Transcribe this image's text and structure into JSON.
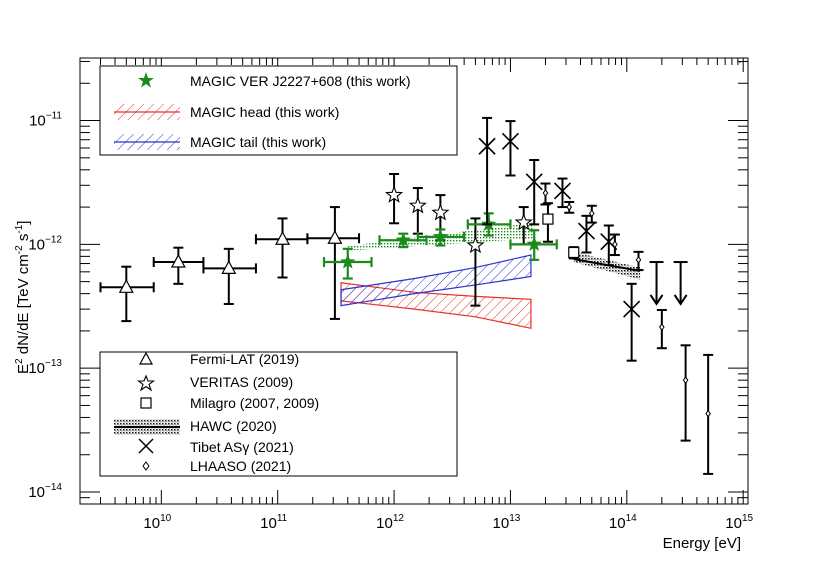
{
  "chart_data": {
    "type": "scatter",
    "title": "",
    "xlabel": "Energy [eV]",
    "ylabel_parts": {
      "e": "E",
      "e_sup": "2",
      "mid": " dN/dE [TeV cm",
      "cm_sup": "-2",
      "s": " s",
      "s_sup": "-1",
      "end": "]"
    },
    "x_scale": "log",
    "y_scale": "log",
    "xlim": [
      2000000000.0,
      1100000000000000.0
    ],
    "ylim": [
      8e-15,
      3.2e-11
    ],
    "x_ticks": [
      {
        "value": 10000000000.0,
        "base": "10",
        "exp": "10"
      },
      {
        "value": 100000000000.0,
        "base": "10",
        "exp": "11"
      },
      {
        "value": 1000000000000.0,
        "base": "10",
        "exp": "12"
      },
      {
        "value": 10000000000000.0,
        "base": "10",
        "exp": "13"
      },
      {
        "value": 100000000000000.0,
        "base": "10",
        "exp": "14"
      },
      {
        "value": 1000000000000000.0,
        "base": "10",
        "exp": "15"
      }
    ],
    "y_ticks": [
      {
        "value": 1e-14,
        "base": "10",
        "exp": "−14"
      },
      {
        "value": 1e-13,
        "base": "10",
        "exp": "−13"
      },
      {
        "value": 1e-12,
        "base": "10",
        "exp": "−12"
      },
      {
        "value": 1e-11,
        "base": "10",
        "exp": "−11"
      }
    ],
    "legend_top": {
      "position": "top-left",
      "entries": [
        {
          "label": "MAGIC VER J2227+608 (this work)",
          "marker": "star-filled",
          "color": "#1a8a1a"
        },
        {
          "label": "MAGIC head (this work)",
          "marker": "hatched-band",
          "color": "#e8302a"
        },
        {
          "label": "MAGIC tail (this work)",
          "marker": "hatched-band",
          "color": "#2b33cc"
        }
      ]
    },
    "legend_bottom": {
      "position": "bottom-left",
      "entries": [
        {
          "label": "Fermi-LAT (2019)",
          "marker": "triangle-open"
        },
        {
          "label": "VERITAS (2009)",
          "marker": "star-open"
        },
        {
          "label": "Milagro (2007, 2009)",
          "marker": "square-open"
        },
        {
          "label": "HAWC (2020)",
          "marker": "dotted-band"
        },
        {
          "label": "Tibet ASγ (2021)",
          "marker": "cross"
        },
        {
          "label": "LHAASO (2021)",
          "marker": "diamond-small"
        }
      ]
    },
    "series": [
      {
        "name": "Fermi-LAT (2019)",
        "marker": "triangle-open",
        "color": "#000000",
        "points": [
          {
            "x": 5000000000.0,
            "y": 4.5e-13,
            "xlo": 3000000000.0,
            "xhi": 8600000000.0,
            "ylo": 2.4e-13,
            "yhi": 6.6e-13
          },
          {
            "x": 14000000000.0,
            "y": 7.2e-13,
            "xlo": 8600000000.0,
            "xhi": 23000000000.0,
            "ylo": 4.8e-13,
            "yhi": 9.4e-13
          },
          {
            "x": 38000000000.0,
            "y": 6.4e-13,
            "xlo": 23000000000.0,
            "xhi": 65000000000.0,
            "ylo": 3.3e-13,
            "yhi": 9.2e-13
          },
          {
            "x": 110000000000.0,
            "y": 1.1e-12,
            "xlo": 65000000000.0,
            "xhi": 180000000000.0,
            "ylo": 5.4e-13,
            "yhi": 1.62e-12
          },
          {
            "x": 310000000000.0,
            "y": 1.12e-12,
            "xlo": 180000000000.0,
            "xhi": 500000000000.0,
            "ylo": 2.5e-13,
            "yhi": 2e-12
          }
        ]
      },
      {
        "name": "VERITAS (2009)",
        "marker": "star-open",
        "color": "#000000",
        "points": [
          {
            "x": 1000000000000.0,
            "y": 2.5e-12,
            "ylo": 1.48e-12,
            "yhi": 3.7e-12
          },
          {
            "x": 1600000000000.0,
            "y": 2.05e-12,
            "ylo": 1.22e-12,
            "yhi": 2.85e-12
          },
          {
            "x": 2500000000000.0,
            "y": 1.8e-12,
            "ylo": 1.08e-12,
            "yhi": 2.5e-12
          },
          {
            "x": 5000000000000.0,
            "y": 9.8e-13,
            "ylo": 3.2e-13,
            "yhi": 1.62e-12
          },
          {
            "x": 13000000000000.0,
            "y": 1.5e-12,
            "ylo": 1e-12,
            "yhi": 2e-12
          }
        ]
      },
      {
        "name": "MAGIC VER J2227+608 (this work)",
        "marker": "star-filled",
        "color": "#1a8a1a",
        "points": [
          {
            "x": 400000000000.0,
            "y": 7.2e-13,
            "xlo": 250000000000.0,
            "xhi": 640000000000.0,
            "ylo": 5.3e-13,
            "yhi": 9.2e-13
          },
          {
            "x": 1200000000000.0,
            "y": 1.08e-12,
            "xlo": 750000000000.0,
            "xhi": 1900000000000.0,
            "ylo": 9.5e-13,
            "yhi": 1.22e-12
          },
          {
            "x": 2500000000000.0,
            "y": 1.15e-12,
            "xlo": 1600000000000.0,
            "xhi": 4000000000000.0,
            "ylo": 9.8e-13,
            "yhi": 1.32e-12
          },
          {
            "x": 6500000000000.0,
            "y": 1.45e-12,
            "xlo": 4300000000000.0,
            "xhi": 10000000000000.0,
            "ylo": 1.18e-12,
            "yhi": 1.78e-12
          },
          {
            "x": 16000000000000.0,
            "y": 1e-12,
            "xlo": 10000000000000.0,
            "xhi": 25000000000000.0,
            "ylo": 7.5e-13,
            "yhi": 1.3e-12
          }
        ]
      },
      {
        "name": "Milagro (2007, 2009)",
        "marker": "square-open",
        "color": "#000000",
        "points": [
          {
            "x": 21000000000000.0,
            "y": 1.6e-12,
            "ylo": 1.05e-12,
            "yhi": 2.15e-12
          },
          {
            "x": 35000000000000.0,
            "y": 8.6e-13,
            "ylo": 7.7e-13,
            "yhi": 9.5e-13
          }
        ]
      },
      {
        "name": "Tibet ASγ (2021)",
        "marker": "cross",
        "color": "#000000",
        "points": [
          {
            "x": 6300000000000.0,
            "y": 6.2e-12,
            "ylo": 1.45e-12,
            "yhi": 1.05e-11
          },
          {
            "x": 10000000000000.0,
            "y": 6.8e-12,
            "ylo": 3.6e-12,
            "yhi": 9.9e-12
          },
          {
            "x": 16000000000000.0,
            "y": 3.2e-12,
            "ylo": 1.45e-12,
            "yhi": 4.8e-12
          },
          {
            "x": 28000000000000.0,
            "y": 2.7e-12,
            "ylo": 2e-12,
            "yhi": 3.4e-12
          },
          {
            "x": 45000000000000.0,
            "y": 1.28e-12,
            "ylo": 8.6e-13,
            "yhi": 1.7e-12
          },
          {
            "x": 70000000000000.0,
            "y": 1.05e-12,
            "ylo": 6.8e-13,
            "yhi": 1.42e-12
          },
          {
            "x": 110000000000000.0,
            "y": 3e-13,
            "ylo": 1.15e-13,
            "yhi": 4.8e-13
          }
        ]
      },
      {
        "name": "Tibet ASγ (2021) upper limits",
        "marker": "upper-limit",
        "color": "#000000",
        "points": [
          {
            "x": 180000000000000.0,
            "y": 7.2e-13,
            "ylimit_tip": 3.3e-13
          },
          {
            "x": 290000000000000.0,
            "y": 7.2e-13,
            "ylimit_tip": 3.3e-13
          }
        ]
      },
      {
        "name": "LHAASO (2021)",
        "marker": "diamond-small",
        "color": "#000000",
        "points": [
          {
            "x": 20000000000000.0,
            "y": 2.6e-12,
            "ylo": 2.1e-12,
            "yhi": 3.1e-12
          },
          {
            "x": 32000000000000.0,
            "y": 2e-12,
            "ylo": 1.8e-12,
            "yhi": 2.2e-12
          },
          {
            "x": 50000000000000.0,
            "y": 1.78e-12,
            "ylo": 1.5e-12,
            "yhi": 2.05e-12
          },
          {
            "x": 79000000000000.0,
            "y": 1e-12,
            "ylo": 8.2e-13,
            "yhi": 1.2e-12
          },
          {
            "x": 126000000000000.0,
            "y": 7.5e-13,
            "ylo": 6.2e-13,
            "yhi": 8.7e-13
          },
          {
            "x": 200000000000000.0,
            "y": 2.15e-13,
            "ylo": 1.45e-13,
            "yhi": 2.95e-13
          },
          {
            "x": 320000000000000.0,
            "y": 8e-14,
            "ylo": 2.6e-14,
            "yhi": 1.53e-13
          },
          {
            "x": 500000000000000.0,
            "y": 4.3e-14,
            "ylo": 1.4e-14,
            "yhi": 1.28e-13
          }
        ]
      }
    ],
    "bands": [
      {
        "name": "MAGIC VER J2227+608 (this work) band",
        "style": "dotted",
        "color": "#1a8a1a",
        "x": [
          400000000000.0,
          16000000000000.0
        ],
        "upper": [
          9.7e-13,
          1.5e-12
        ],
        "lower": [
          8.9e-13,
          1.12e-12
        ]
      },
      {
        "name": "MAGIC head (this work)",
        "style": "hatched",
        "color": "#e8302a",
        "x": [
          350000000000.0,
          1500000000000.0,
          5000000000000.0,
          15000000000000.0
        ],
        "upper": [
          4.9e-13,
          4.1e-13,
          3.8e-13,
          3.6e-13
        ],
        "lower": [
          3.5e-13,
          3e-13,
          2.6e-13,
          2.1e-13
        ]
      },
      {
        "name": "MAGIC tail (this work)",
        "style": "hatched",
        "color": "#2b33cc",
        "x": [
          350000000000.0,
          1500000000000.0,
          5000000000000.0,
          15000000000000.0
        ],
        "upper": [
          4.3e-13,
          5.3e-13,
          6.5e-13,
          8.2e-13
        ],
        "lower": [
          3.2e-13,
          4e-13,
          4.7e-13,
          5.5e-13
        ]
      },
      {
        "name": "HAWC (2020)",
        "style": "dense-dots",
        "color": "#222222",
        "x": [
          35000000000000.0,
          130000000000000.0
        ],
        "upper": [
          8.7e-13,
          6.5e-13
        ],
        "lower": [
          7.2e-13,
          5.2e-13
        ]
      }
    ],
    "hawc_line": {
      "x": [
        35000000000000.0,
        130000000000000.0
      ],
      "y": [
        7.6e-13,
        6.1e-13
      ]
    }
  }
}
